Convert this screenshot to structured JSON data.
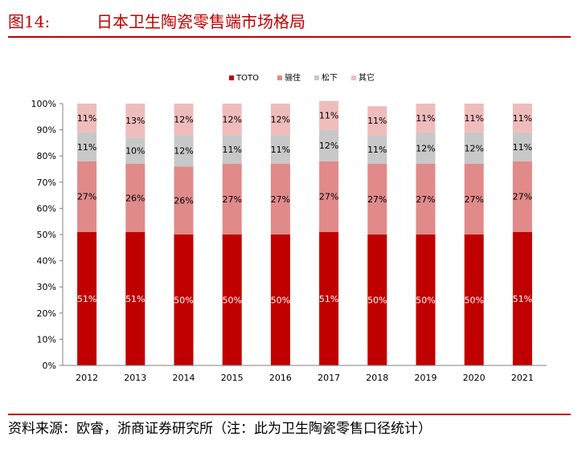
{
  "figure": {
    "label": "图14:",
    "title": "日本卫生陶瓷零售端市场格局",
    "source": "资料来源：欧睿，浙商证券研究所（注：此为卫生陶瓷零售口径统计）"
  },
  "chart_data": {
    "type": "bar",
    "stacked": true,
    "categories": [
      "2012",
      "2013",
      "2014",
      "2015",
      "2016",
      "2017",
      "2018",
      "2019",
      "2020",
      "2021"
    ],
    "series": [
      {
        "name": "TOTO",
        "color": "#c00000",
        "label_color": "#ffffff",
        "values": [
          51,
          51,
          50,
          50,
          50,
          51,
          50,
          50,
          50,
          51
        ],
        "labels": [
          "51%",
          "51%",
          "50%",
          "50%",
          "50%",
          "51%",
          "50%",
          "50%",
          "50%",
          "51%"
        ]
      },
      {
        "name": "骊住",
        "color": "#e08a8a",
        "label_color": "#000000",
        "values": [
          27,
          26,
          26,
          27,
          27,
          27,
          27,
          27,
          27,
          27
        ],
        "labels": [
          "27%",
          "26%",
          "26%",
          "27%",
          "27%",
          "27%",
          "27%",
          "27%",
          "27%",
          "27%"
        ]
      },
      {
        "name": "松下",
        "color": "#c8c8c8",
        "label_color": "#000000",
        "values": [
          11,
          10,
          12,
          11,
          11,
          12,
          11,
          12,
          12,
          11
        ],
        "labels": [
          "11%",
          "10%",
          "12%",
          "11%",
          "11%",
          "12%",
          "11%",
          "12%",
          "12%",
          "11%"
        ]
      },
      {
        "name": "其它",
        "color": "#efbcbc",
        "label_color": "#000000",
        "values": [
          11,
          13,
          12,
          12,
          12,
          11,
          11,
          11,
          11,
          11
        ],
        "labels": [
          "11%",
          "13%",
          "12%",
          "12%",
          "12%",
          "11%",
          "11%",
          "11%",
          "11%",
          "11%"
        ]
      }
    ],
    "ylim": [
      0,
      100
    ],
    "yticks": [
      "0%",
      "10%",
      "20%",
      "30%",
      "40%",
      "50%",
      "60%",
      "70%",
      "80%",
      "90%",
      "100%"
    ],
    "legend_position": "top",
    "grid": false
  }
}
